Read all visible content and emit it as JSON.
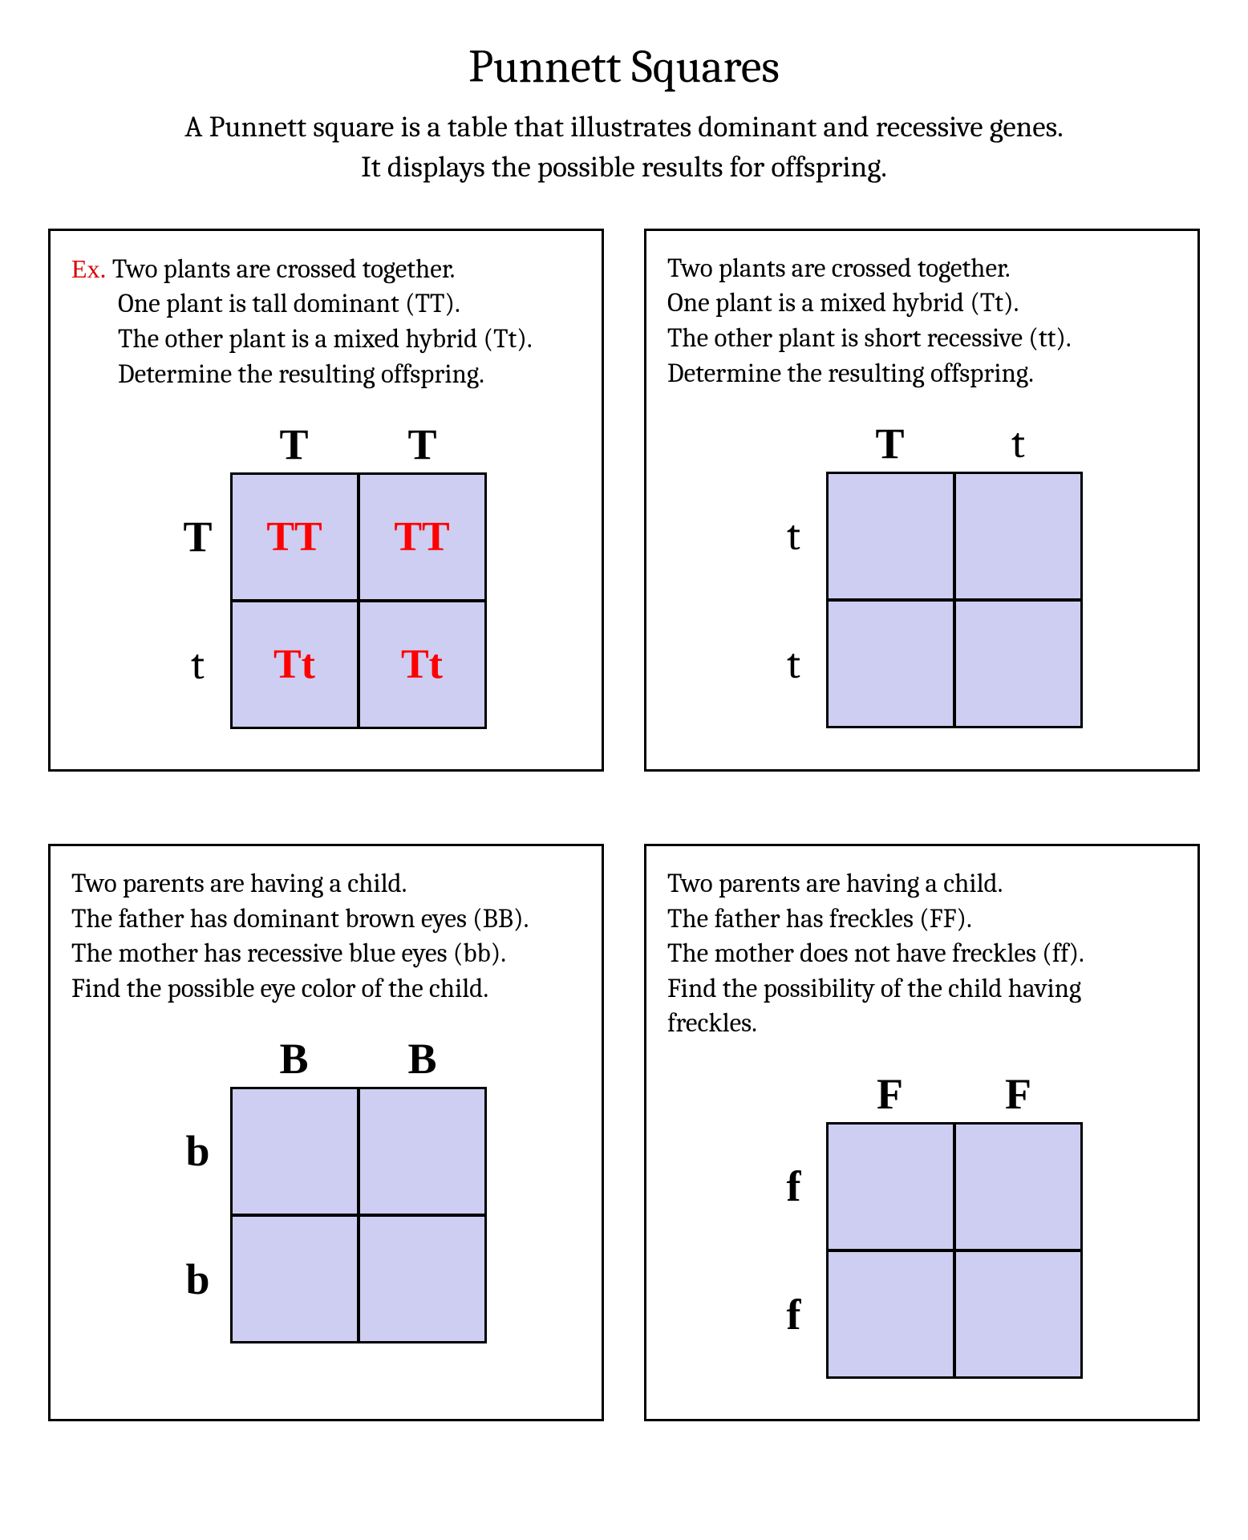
{
  "title": "Punnett Squares",
  "subtitle_line1": "A Punnett square is a table that illustrates dominant and recessive genes.",
  "subtitle_line2": "It displays the possible results for offspring.",
  "ex_label": "Ex.",
  "colors": {
    "cell_bg": "#cdcef1",
    "answer": "#ff0000",
    "ex_label": "#dc0000",
    "border": "#000000",
    "text": "#000000",
    "bg": "#ffffff"
  },
  "panels": [
    {
      "is_example": true,
      "lines": [
        "Two plants are crossed together.",
        "One plant is tall dominant (TT).",
        "The other plant is a mixed hybrid (Tt).",
        "Determine the resulting offspring."
      ],
      "top": [
        "T",
        "T"
      ],
      "left": [
        "T",
        "t"
      ],
      "cells": [
        "TT",
        "TT",
        "Tt",
        "Tt"
      ],
      "show_answers": true
    },
    {
      "is_example": false,
      "lines": [
        "Two plants are crossed together.",
        "One plant is a mixed hybrid (Tt).",
        "The other plant is short recessive (tt).",
        "Determine the resulting offspring."
      ],
      "top": [
        "T",
        "t"
      ],
      "left": [
        "t",
        "t"
      ],
      "cells": [
        "",
        "",
        "",
        ""
      ],
      "show_answers": false
    },
    {
      "is_example": false,
      "lines": [
        "Two parents are having a child.",
        "The father has dominant brown eyes (BB).",
        "The mother has recessive blue eyes (bb).",
        "Find the possible eye color of the child."
      ],
      "top": [
        "B",
        "B"
      ],
      "left": [
        "b",
        "b"
      ],
      "cells": [
        "",
        "",
        "",
        ""
      ],
      "show_answers": false
    },
    {
      "is_example": false,
      "lines": [
        "Two parents are having a child.",
        "The father has freckles (FF).",
        "The mother does not have freckles (ff).",
        "Find the possibility of the child having freckles."
      ],
      "top": [
        "F",
        "F"
      ],
      "left": [
        "f",
        "f"
      ],
      "cells": [
        "",
        "",
        "",
        ""
      ],
      "show_answers": false
    }
  ]
}
